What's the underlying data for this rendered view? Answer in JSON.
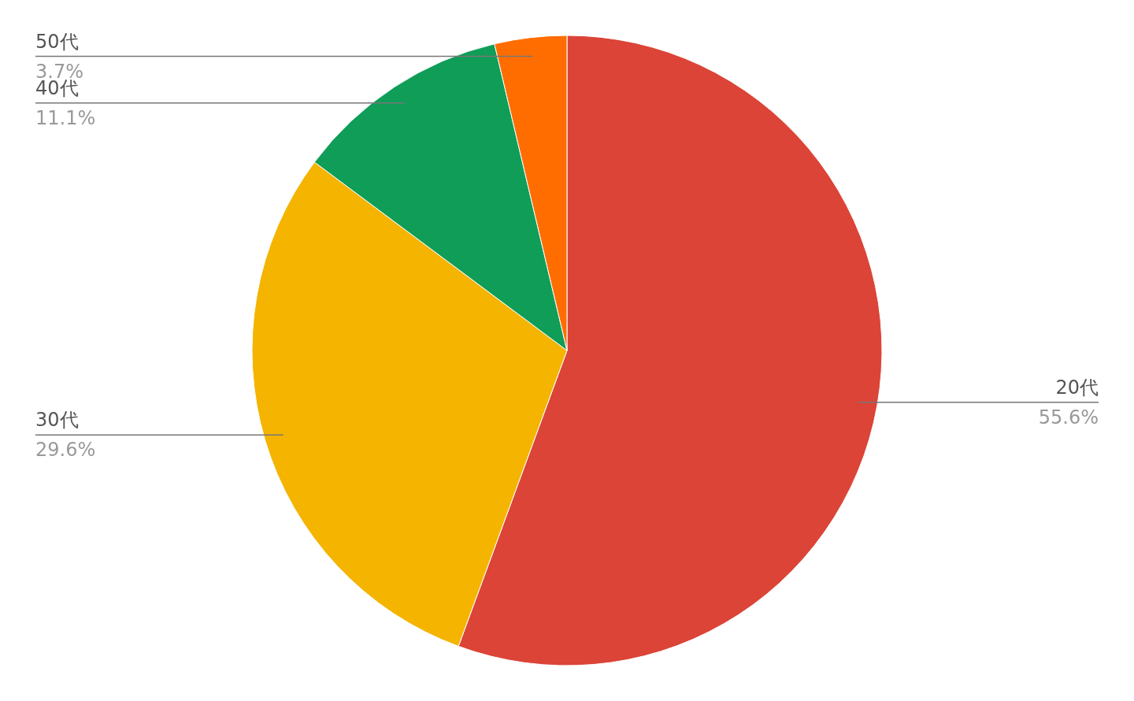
{
  "chart_data": {
    "type": "pie",
    "categories": [
      "20代",
      "30代",
      "40代",
      "50代"
    ],
    "values": [
      55.6,
      29.6,
      11.1,
      3.7
    ],
    "colors": [
      "#db4437",
      "#f4b400",
      "#0f9d58",
      "#ff6d00"
    ],
    "value_labels": [
      "55.6%",
      "29.6%",
      "11.1%",
      "3.7%"
    ]
  }
}
